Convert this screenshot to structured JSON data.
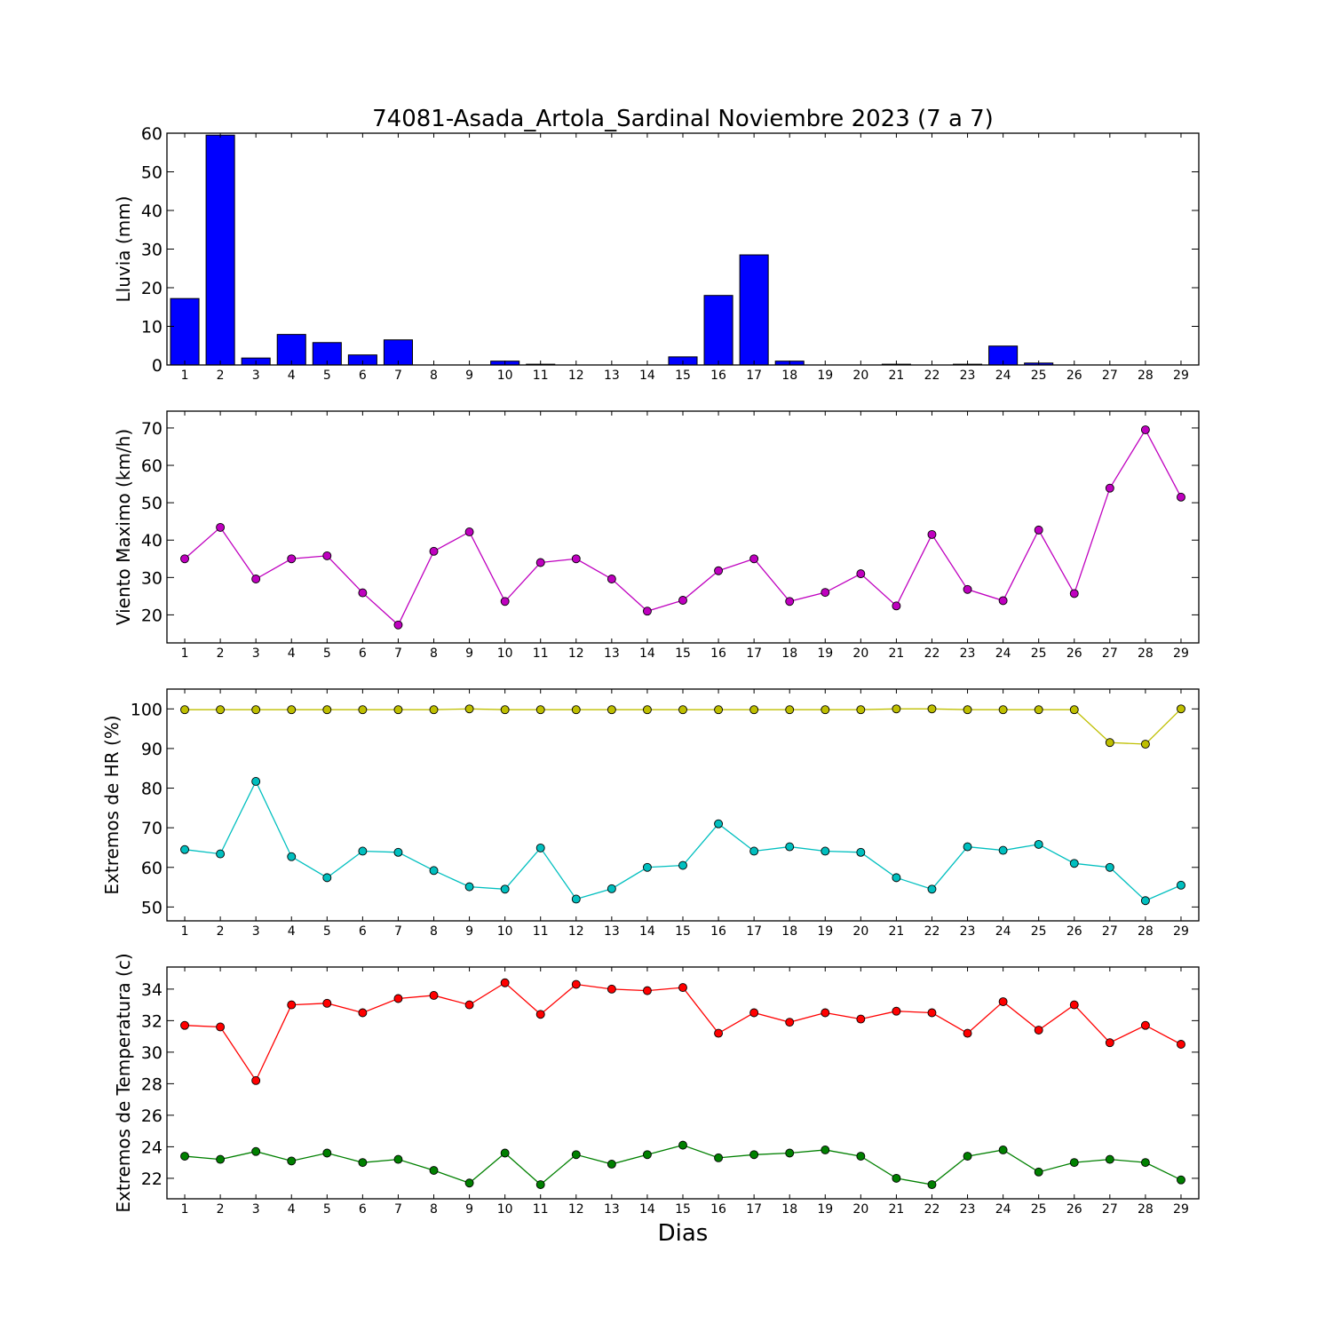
{
  "title": "74081-Asada_Artola_Sardinal Noviembre 2023  (7 a 7)",
  "xlabel": "Dias",
  "chart_data": [
    {
      "type": "bar",
      "ylabel": "Lluvia (mm)",
      "ylim": [
        0,
        60
      ],
      "yticks": [
        0,
        10,
        20,
        30,
        40,
        50,
        60
      ],
      "x": [
        1,
        2,
        3,
        4,
        5,
        6,
        7,
        8,
        9,
        10,
        11,
        12,
        13,
        14,
        15,
        16,
        17,
        18,
        19,
        20,
        21,
        22,
        23,
        24,
        25,
        26,
        27,
        28,
        29
      ],
      "series": [
        {
          "color": "#0000ff",
          "values": [
            17.2,
            59.5,
            1.8,
            7.9,
            5.8,
            2.6,
            6.5,
            0,
            0,
            1,
            0.2,
            0,
            0,
            0,
            2.1,
            18,
            28.5,
            1,
            0,
            0,
            0.2,
            0,
            0.2,
            4.9,
            0.5,
            0,
            0,
            0,
            0
          ]
        }
      ]
    },
    {
      "type": "line",
      "ylabel": "Viento Maximo (km/h)",
      "ylim": [
        12.5,
        74.5
      ],
      "yticks": [
        20,
        30,
        40,
        50,
        60,
        70
      ],
      "x": [
        1,
        2,
        3,
        4,
        5,
        6,
        7,
        8,
        9,
        10,
        11,
        12,
        13,
        14,
        15,
        16,
        17,
        18,
        19,
        20,
        21,
        22,
        23,
        24,
        25,
        26,
        27,
        28,
        29
      ],
      "series": [
        {
          "color": "#bf00bf",
          "values": [
            35,
            43.4,
            29.6,
            35,
            35.8,
            25.9,
            17.3,
            37,
            42.2,
            23.6,
            34,
            35,
            29.6,
            21,
            23.9,
            31.8,
            35,
            23.6,
            26,
            31,
            22.4,
            41.5,
            26.8,
            23.8,
            42.7,
            25.7,
            53.9,
            69.5,
            51.5
          ]
        }
      ]
    },
    {
      "type": "line",
      "ylabel": "Extremos de HR (%)",
      "ylim": [
        46.5,
        105
      ],
      "yticks": [
        50,
        60,
        70,
        80,
        90,
        100
      ],
      "x": [
        1,
        2,
        3,
        4,
        5,
        6,
        7,
        8,
        9,
        10,
        11,
        12,
        13,
        14,
        15,
        16,
        17,
        18,
        19,
        20,
        21,
        22,
        23,
        24,
        25,
        26,
        27,
        28,
        29
      ],
      "series": [
        {
          "color": "#bfbf00",
          "values": [
            99.8,
            99.8,
            99.8,
            99.8,
            99.8,
            99.8,
            99.8,
            99.8,
            100,
            99.8,
            99.8,
            99.8,
            99.8,
            99.8,
            99.8,
            99.8,
            99.8,
            99.8,
            99.8,
            99.8,
            100,
            100,
            99.8,
            99.8,
            99.8,
            99.8,
            91.5,
            91.1,
            100
          ]
        },
        {
          "color": "#00bfbf",
          "values": [
            64.5,
            63.4,
            81.7,
            62.7,
            57.4,
            64.1,
            63.8,
            59.2,
            55.1,
            54.5,
            64.9,
            52,
            54.6,
            60,
            60.5,
            71,
            64.1,
            65.2,
            64.1,
            63.8,
            57.4,
            54.5,
            65.2,
            64.3,
            65.8,
            61,
            60,
            51.6,
            55.5
          ]
        }
      ]
    },
    {
      "type": "line",
      "ylabel": "Extremos de Temperatura (c)",
      "ylim": [
        20.7,
        35.4
      ],
      "yticks": [
        22,
        24,
        26,
        28,
        30,
        32,
        34
      ],
      "x": [
        1,
        2,
        3,
        4,
        5,
        6,
        7,
        8,
        9,
        10,
        11,
        12,
        13,
        14,
        15,
        16,
        17,
        18,
        19,
        20,
        21,
        22,
        23,
        24,
        25,
        26,
        27,
        28,
        29
      ],
      "series": [
        {
          "color": "#ff0000",
          "values": [
            31.7,
            31.6,
            28.2,
            33,
            33.1,
            32.5,
            33.4,
            33.6,
            33,
            34.4,
            32.4,
            34.3,
            34,
            33.9,
            34.1,
            31.2,
            32.5,
            31.9,
            32.5,
            32.1,
            32.6,
            32.5,
            31.2,
            33.2,
            31.4,
            33,
            30.6,
            31.7,
            30.5
          ]
        },
        {
          "color": "#008000",
          "values": [
            23.4,
            23.2,
            23.7,
            23.1,
            23.6,
            23,
            23.2,
            22.5,
            21.7,
            23.6,
            21.6,
            23.5,
            22.9,
            23.5,
            24.1,
            23.3,
            23.5,
            23.6,
            23.8,
            23.4,
            22,
            21.6,
            23.4,
            23.8,
            22.4,
            23,
            23.2,
            23,
            21.9
          ]
        }
      ]
    }
  ]
}
